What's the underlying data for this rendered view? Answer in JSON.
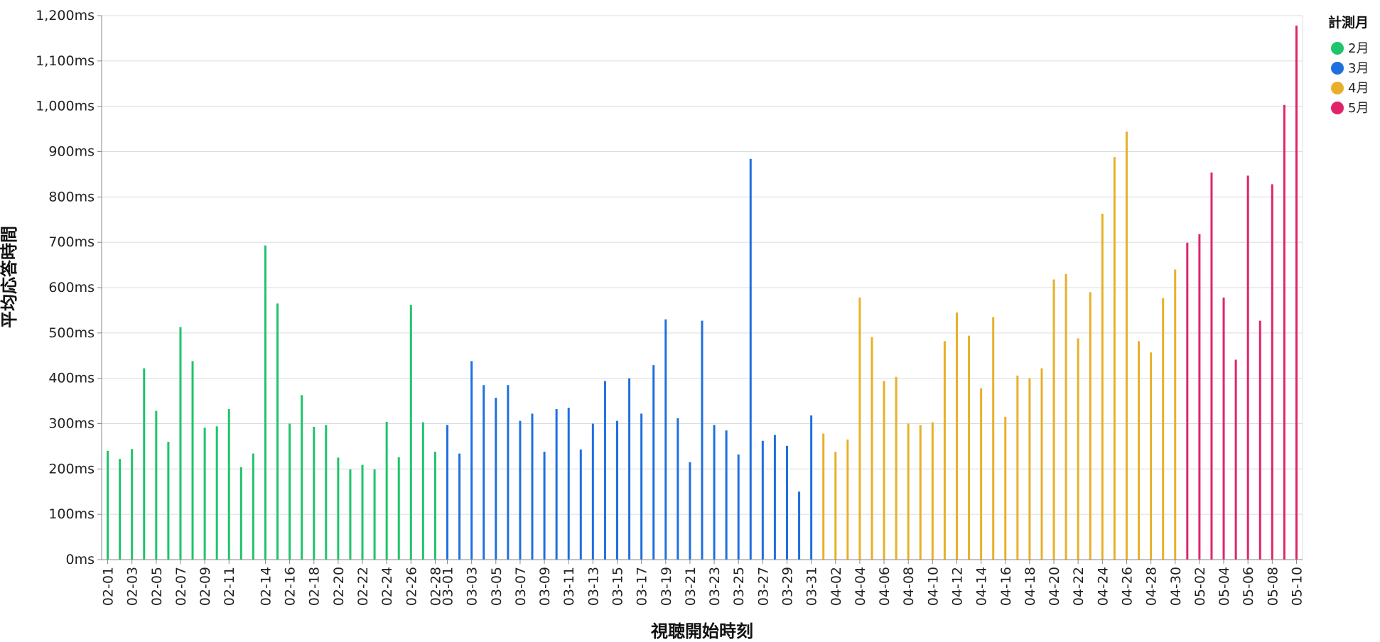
{
  "chart_data": {
    "type": "bar",
    "xlabel": "視聴開始時刻",
    "ylabel": "平均応答時間",
    "ylim": [
      0,
      1200
    ],
    "y_ticks": [
      "0ms",
      "100ms",
      "200ms",
      "300ms",
      "400ms",
      "500ms",
      "600ms",
      "700ms",
      "800ms",
      "900ms",
      "1,000ms",
      "1,100ms",
      "1,200ms"
    ],
    "grid": true,
    "legend": {
      "title": "計測月",
      "position": "top-right",
      "items": [
        {
          "label": "2月",
          "color": "#1fc46b"
        },
        {
          "label": "3月",
          "color": "#1f6fe0"
        },
        {
          "label": "4月",
          "color": "#e8b02a"
        },
        {
          "label": "5月",
          "color": "#e0246c"
        }
      ]
    },
    "series": [
      {
        "name": "2月",
        "color": "#1fc46b",
        "points": [
          [
            "02-01",
            240
          ],
          [
            "02-02",
            222
          ],
          [
            "02-03",
            244
          ],
          [
            "02-04",
            422
          ],
          [
            "02-05",
            328
          ],
          [
            "02-06",
            260
          ],
          [
            "02-07",
            513
          ],
          [
            "02-08",
            438
          ],
          [
            "02-09",
            291
          ],
          [
            "02-10",
            294
          ],
          [
            "02-11",
            332
          ],
          [
            "02-12",
            204
          ],
          [
            "02-13",
            234
          ],
          [
            "02-14",
            693
          ],
          [
            "02-15",
            565
          ],
          [
            "02-16",
            300
          ],
          [
            "02-17",
            363
          ],
          [
            "02-18",
            293
          ],
          [
            "02-19",
            297
          ],
          [
            "02-20",
            225
          ],
          [
            "02-21",
            199
          ],
          [
            "02-22",
            209
          ],
          [
            "02-23",
            199
          ],
          [
            "02-24",
            304
          ],
          [
            "02-25",
            226
          ],
          [
            "02-26",
            562
          ],
          [
            "02-27",
            303
          ],
          [
            "02-28",
            238
          ]
        ]
      },
      {
        "name": "3月",
        "color": "#1f6fe0",
        "points": [
          [
            "03-01",
            297
          ],
          [
            "03-02",
            234
          ],
          [
            "03-03",
            438
          ],
          [
            "03-04",
            385
          ],
          [
            "03-05",
            357
          ],
          [
            "03-06",
            385
          ],
          [
            "03-07",
            306
          ],
          [
            "03-08",
            322
          ],
          [
            "03-09",
            238
          ],
          [
            "03-10",
            332
          ],
          [
            "03-11",
            335
          ],
          [
            "03-12",
            243
          ],
          [
            "03-13",
            300
          ],
          [
            "03-14",
            394
          ],
          [
            "03-15",
            306
          ],
          [
            "03-16",
            400
          ],
          [
            "03-17",
            322
          ],
          [
            "03-18",
            429
          ],
          [
            "03-19",
            530
          ],
          [
            "03-20",
            312
          ],
          [
            "03-21",
            215
          ],
          [
            "03-22",
            527
          ],
          [
            "03-23",
            297
          ],
          [
            "03-24",
            285
          ],
          [
            "03-25",
            232
          ],
          [
            "03-26",
            884
          ],
          [
            "03-27",
            262
          ],
          [
            "03-28",
            275
          ],
          [
            "03-29",
            251
          ],
          [
            "03-30",
            150
          ],
          [
            "03-31",
            318
          ]
        ]
      },
      {
        "name": "4月",
        "color": "#e8b02a",
        "points": [
          [
            "04-01",
            278
          ],
          [
            "04-02",
            238
          ],
          [
            "04-03",
            265
          ],
          [
            "04-04",
            578
          ],
          [
            "04-05",
            491
          ],
          [
            "04-06",
            394
          ],
          [
            "04-07",
            403
          ],
          [
            "04-08",
            300
          ],
          [
            "04-09",
            297
          ],
          [
            "04-10",
            303
          ],
          [
            "04-11",
            482
          ],
          [
            "04-12",
            545
          ],
          [
            "04-13",
            494
          ],
          [
            "04-14",
            378
          ],
          [
            "04-15",
            535
          ],
          [
            "04-16",
            315
          ],
          [
            "04-17",
            406
          ],
          [
            "04-18",
            400
          ],
          [
            "04-19",
            422
          ],
          [
            "04-20",
            618
          ],
          [
            "04-21",
            630
          ],
          [
            "04-22",
            488
          ],
          [
            "04-23",
            590
          ],
          [
            "04-24",
            763
          ],
          [
            "04-25",
            888
          ],
          [
            "04-26",
            944
          ],
          [
            "04-27",
            482
          ],
          [
            "04-28",
            457
          ],
          [
            "04-29",
            577
          ],
          [
            "04-30",
            640
          ]
        ]
      },
      {
        "name": "5月",
        "color": "#e0246c",
        "points": [
          [
            "05-01",
            699
          ],
          [
            "05-02",
            718
          ],
          [
            "05-03",
            854
          ],
          [
            "05-04",
            578
          ],
          [
            "05-05",
            441
          ],
          [
            "05-06",
            847
          ],
          [
            "05-07",
            527
          ],
          [
            "05-08",
            828
          ],
          [
            "05-09",
            1003
          ],
          [
            "05-10",
            1178
          ]
        ]
      }
    ],
    "x_tick_labels": [
      "02-01",
      "02-03",
      "02-05",
      "02-07",
      "02-09",
      "02-11",
      "02-14",
      "02-16",
      "02-18",
      "02-20",
      "02-22",
      "02-24",
      "02-26",
      "02-28",
      "03-01",
      "03-03",
      "03-05",
      "03-07",
      "03-09",
      "03-11",
      "03-13",
      "03-15",
      "03-17",
      "03-19",
      "03-21",
      "03-23",
      "03-25",
      "03-27",
      "03-29",
      "03-31",
      "04-02",
      "04-04",
      "04-06",
      "04-08",
      "04-10",
      "04-12",
      "04-14",
      "04-16",
      "04-18",
      "04-20",
      "04-22",
      "04-24",
      "04-26",
      "04-28",
      "04-30",
      "05-02",
      "05-04",
      "05-06",
      "05-08",
      "05-10"
    ]
  }
}
